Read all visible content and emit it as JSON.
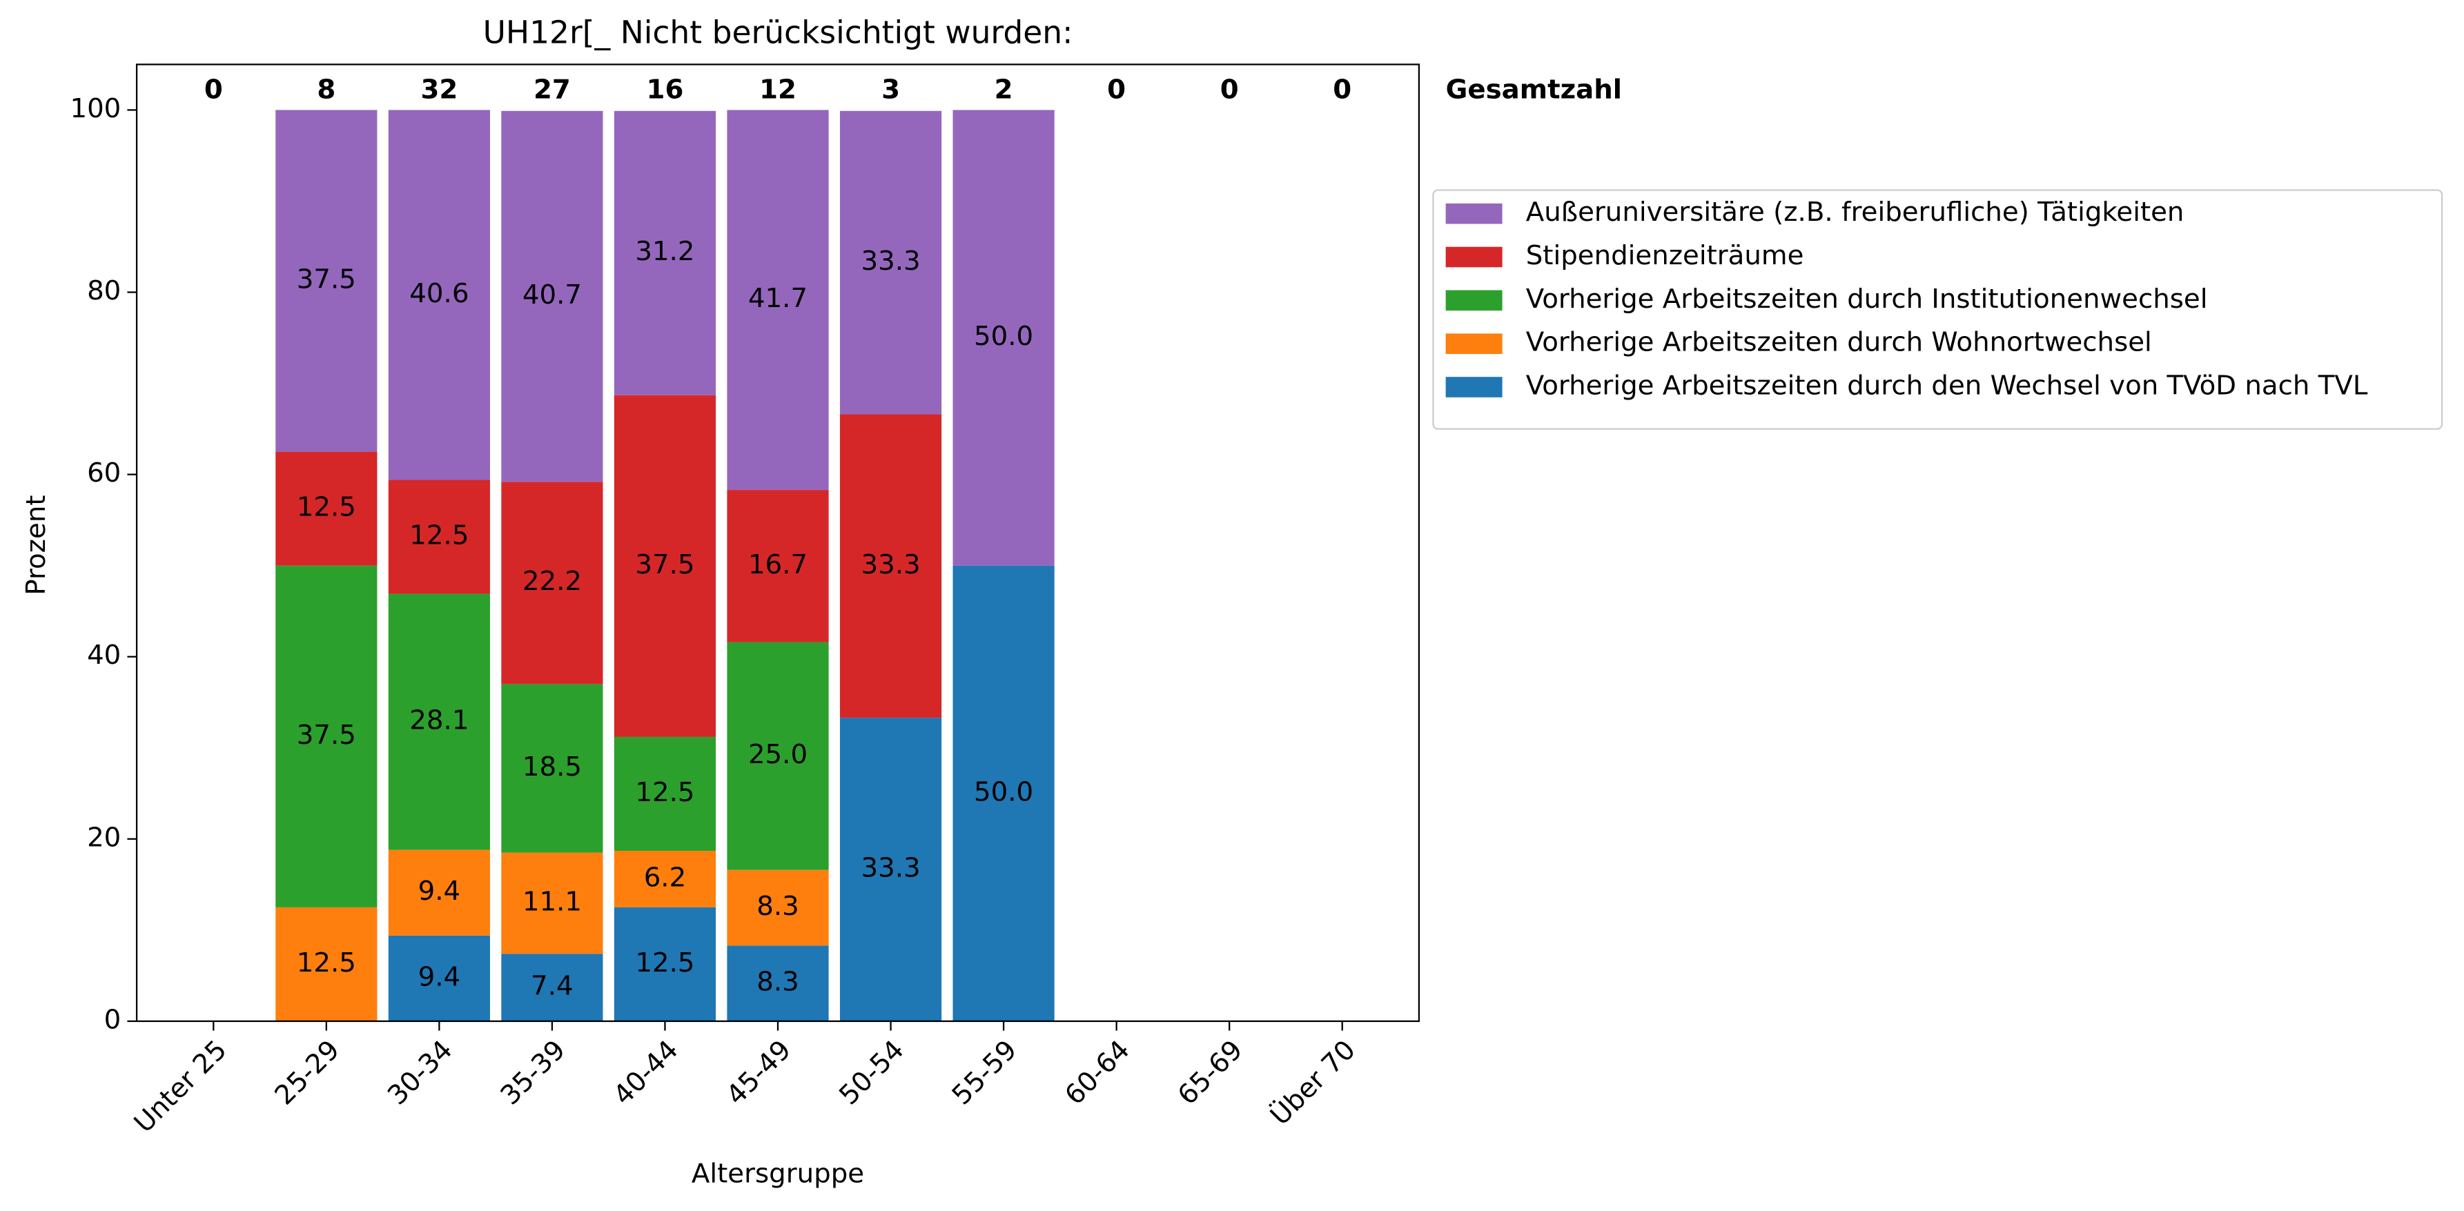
{
  "chart_data": {
    "type": "stacked_bar",
    "title": "UH12r[_ Nicht berücksichtigt wurden:",
    "x_label": "Altersgruppe",
    "y_label": "Prozent",
    "categories": [
      "Unter 25",
      "25-29",
      "30-34",
      "35-39",
      "40-44",
      "45-49",
      "50-54",
      "55-59",
      "60-64",
      "65-69",
      "Über 70"
    ],
    "series": [
      {
        "name": "Vorherige Arbeitszeiten durch den Wechsel von TVöD nach TVL",
        "color": "#1f77b4",
        "values": [
          null,
          null,
          9.4,
          7.4,
          12.5,
          8.3,
          33.3,
          50.0,
          null,
          null,
          null
        ],
        "value_labels": [
          null,
          null,
          "9.4",
          "7.4",
          "12.5",
          "8.3",
          "33.3",
          "50.0",
          null,
          null,
          null
        ]
      },
      {
        "name": "Vorherige Arbeitszeiten durch Wohnortwechsel",
        "color": "#ff7f0e",
        "values": [
          null,
          12.5,
          9.4,
          11.1,
          6.2,
          8.3,
          null,
          null,
          null,
          null,
          null
        ],
        "value_labels": [
          null,
          "12.5",
          "9.4",
          "11.1",
          "6.2",
          "8.3",
          null,
          null,
          null,
          null,
          null
        ]
      },
      {
        "name": "Vorherige Arbeitszeiten durch Institutionenwechsel",
        "color": "#2ca02c",
        "values": [
          null,
          37.5,
          28.1,
          18.5,
          12.5,
          25.0,
          null,
          null,
          null,
          null,
          null
        ],
        "value_labels": [
          null,
          "37.5",
          "28.1",
          "18.5",
          "12.5",
          "25.0",
          null,
          null,
          null,
          null,
          null
        ]
      },
      {
        "name": "Stipendienzeiträume",
        "color": "#d62728",
        "values": [
          null,
          12.5,
          12.5,
          22.2,
          37.5,
          16.7,
          33.3,
          null,
          null,
          null,
          null
        ],
        "value_labels": [
          null,
          "12.5",
          "12.5",
          "22.2",
          "37.5",
          "16.7",
          "33.3",
          null,
          null,
          null,
          null
        ]
      },
      {
        "name": "Außeruniversitäre (z.B. freiberufliche) Tätigkeiten",
        "color": "#9467bd",
        "values": [
          null,
          37.5,
          40.6,
          40.7,
          31.2,
          41.7,
          33.3,
          50.0,
          null,
          null,
          null
        ],
        "value_labels": [
          null,
          "37.5",
          "40.6",
          "40.7",
          "31.2",
          "41.7",
          "33.3",
          "50.0",
          null,
          null,
          null
        ]
      }
    ],
    "totals": {
      "label": "Gesamtzahl",
      "values": [
        0,
        8,
        32,
        27,
        16,
        12,
        3,
        2,
        0,
        0,
        0
      ]
    },
    "ylim": [
      0,
      105
    ],
    "yticks": [
      0,
      20,
      40,
      60,
      80,
      100
    ],
    "grid": false,
    "legend_position": "outside-right-upper",
    "legend_order": "reversed"
  }
}
